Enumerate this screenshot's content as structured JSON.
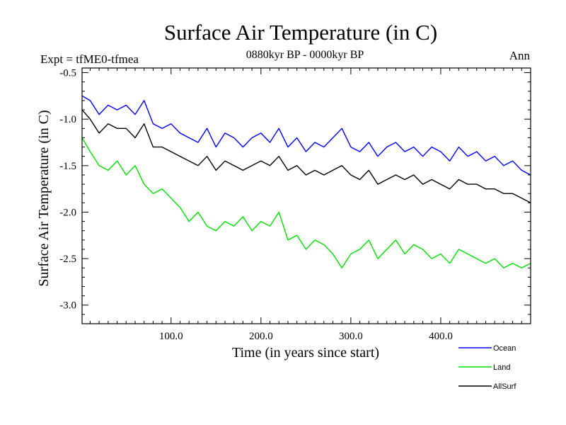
{
  "chart_data": {
    "type": "line",
    "title": "Surface Air Temperature (in C)",
    "subtitle_left": "Expt = tfME0-tfmea",
    "subtitle_center": "0880kyr BP - 0000kyr BP",
    "subtitle_right": "Ann",
    "xlabel": "Time (in years since start)",
    "ylabel": "Surface Air Temperature (in C)",
    "xlim": [
      1,
      500
    ],
    "ylim": [
      -3.2,
      -0.45
    ],
    "x_ticks": [
      100,
      200,
      300,
      400
    ],
    "x_tick_labels": [
      "100.0",
      "200.0",
      "300.0",
      "400.0"
    ],
    "y_ticks": [
      -3.0,
      -2.5,
      -2.0,
      -1.5,
      -1.0,
      -0.5
    ],
    "y_tick_labels": [
      "-3.0",
      "-2.5",
      "-2.0",
      "-1.5",
      "-1.0",
      "-0.5"
    ],
    "grid": false,
    "legend_position": "bottom-right",
    "series": [
      {
        "name": "Ocean",
        "color": "#0000ff",
        "x": [
          1,
          10,
          20,
          30,
          40,
          50,
          60,
          70,
          80,
          90,
          100,
          110,
          120,
          130,
          140,
          150,
          160,
          170,
          180,
          190,
          200,
          210,
          220,
          230,
          240,
          250,
          260,
          270,
          280,
          290,
          300,
          310,
          320,
          330,
          340,
          350,
          360,
          370,
          380,
          390,
          400,
          410,
          420,
          430,
          440,
          450,
          460,
          470,
          480,
          490,
          500
        ],
        "values": [
          -0.75,
          -0.8,
          -0.95,
          -0.85,
          -0.9,
          -0.85,
          -0.95,
          -0.8,
          -1.05,
          -1.1,
          -1.05,
          -1.15,
          -1.2,
          -1.25,
          -1.1,
          -1.3,
          -1.15,
          -1.2,
          -1.3,
          -1.2,
          -1.15,
          -1.25,
          -1.1,
          -1.3,
          -1.2,
          -1.35,
          -1.25,
          -1.3,
          -1.2,
          -1.1,
          -1.3,
          -1.35,
          -1.25,
          -1.4,
          -1.3,
          -1.25,
          -1.35,
          -1.3,
          -1.4,
          -1.3,
          -1.35,
          -1.45,
          -1.3,
          -1.4,
          -1.35,
          -1.45,
          -1.4,
          -1.5,
          -1.45,
          -1.55,
          -1.6
        ]
      },
      {
        "name": "Land",
        "color": "#00e000",
        "x": [
          1,
          10,
          20,
          30,
          40,
          50,
          60,
          70,
          80,
          90,
          100,
          110,
          120,
          130,
          140,
          150,
          160,
          170,
          180,
          190,
          200,
          210,
          220,
          230,
          240,
          250,
          260,
          270,
          280,
          290,
          300,
          310,
          320,
          330,
          340,
          350,
          360,
          370,
          380,
          390,
          400,
          410,
          420,
          430,
          440,
          450,
          460,
          470,
          480,
          490,
          500
        ],
        "values": [
          -1.2,
          -1.35,
          -1.5,
          -1.55,
          -1.45,
          -1.6,
          -1.5,
          -1.7,
          -1.8,
          -1.75,
          -1.85,
          -1.95,
          -2.1,
          -2.0,
          -2.15,
          -2.2,
          -2.1,
          -2.15,
          -2.05,
          -2.2,
          -2.1,
          -2.15,
          -2.0,
          -2.3,
          -2.25,
          -2.4,
          -2.3,
          -2.35,
          -2.45,
          -2.6,
          -2.45,
          -2.4,
          -2.3,
          -2.5,
          -2.4,
          -2.3,
          -2.45,
          -2.35,
          -2.4,
          -2.5,
          -2.45,
          -2.55,
          -2.4,
          -2.45,
          -2.5,
          -2.55,
          -2.5,
          -2.6,
          -2.55,
          -2.6,
          -2.55
        ]
      },
      {
        "name": "AllSurf",
        "color": "#000000",
        "x": [
          1,
          10,
          20,
          30,
          40,
          50,
          60,
          70,
          80,
          90,
          100,
          110,
          120,
          130,
          140,
          150,
          160,
          170,
          180,
          190,
          200,
          210,
          220,
          230,
          240,
          250,
          260,
          270,
          280,
          290,
          300,
          310,
          320,
          330,
          340,
          350,
          360,
          370,
          380,
          390,
          400,
          410,
          420,
          430,
          440,
          450,
          460,
          470,
          480,
          490,
          500
        ],
        "values": [
          -0.9,
          -1.0,
          -1.15,
          -1.05,
          -1.1,
          -1.1,
          -1.2,
          -1.05,
          -1.3,
          -1.3,
          -1.35,
          -1.4,
          -1.45,
          -1.5,
          -1.4,
          -1.55,
          -1.45,
          -1.5,
          -1.55,
          -1.5,
          -1.45,
          -1.5,
          -1.4,
          -1.55,
          -1.5,
          -1.6,
          -1.55,
          -1.6,
          -1.55,
          -1.5,
          -1.6,
          -1.65,
          -1.55,
          -1.7,
          -1.65,
          -1.6,
          -1.65,
          -1.6,
          -1.7,
          -1.65,
          -1.7,
          -1.75,
          -1.65,
          -1.7,
          -1.7,
          -1.75,
          -1.75,
          -1.8,
          -1.8,
          -1.85,
          -1.9
        ]
      }
    ]
  }
}
